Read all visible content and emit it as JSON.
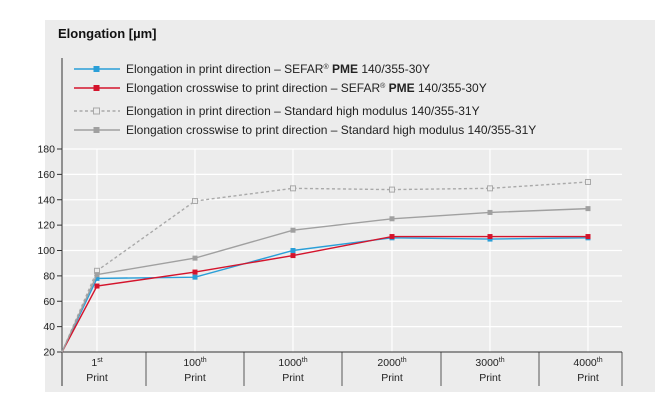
{
  "chart_data": {
    "type": "line",
    "title": "Elongation [µm]",
    "xlabel": "",
    "ylabel": "",
    "ylim": [
      20,
      180
    ],
    "yticks": [
      20,
      40,
      60,
      80,
      100,
      120,
      140,
      160,
      180
    ],
    "grid": true,
    "legend_position": "top-left",
    "categories": [
      {
        "num": "1",
        "sup": "st",
        "line2": "Print"
      },
      {
        "num": "100",
        "sup": "th",
        "line2": "Print"
      },
      {
        "num": "1000",
        "sup": "th",
        "line2": "Print"
      },
      {
        "num": "2000",
        "sup": "th",
        "line2": "Print"
      },
      {
        "num": "3000",
        "sup": "th",
        "line2": "Print"
      },
      {
        "num": "4000",
        "sup": "th",
        "line2": "Print"
      }
    ],
    "origin_value": 20,
    "series": [
      {
        "name": "Elongation in print direction – SEFAR® PME 140/355-30Y",
        "name_parts": [
          "Elongation in print direction – SEFAR",
          "®",
          " ",
          "PME",
          " 140/355-30Y"
        ],
        "color": "#2a9fd8",
        "style": "solid",
        "marker": "filled-square",
        "values": [
          78,
          79,
          100,
          110,
          109,
          110
        ]
      },
      {
        "name": "Elongation crosswise to print direction – SEFAR® PME 140/355-30Y",
        "name_parts": [
          "Elongation crosswise to print direction – SEFAR",
          "®",
          " ",
          "PME",
          " 140/355-30Y"
        ],
        "color": "#d4142c",
        "style": "solid",
        "marker": "filled-square",
        "values": [
          72,
          83,
          96,
          111,
          111,
          111
        ]
      },
      {
        "name": "Elongation in print direction – Standard high modulus 140/355-31Y",
        "color": "#a9a9a9",
        "style": "dashed",
        "marker": "hollow-square",
        "values": [
          84,
          139,
          149,
          148,
          149,
          154
        ]
      },
      {
        "name": "Elongation crosswise to print direction – Standard high modulus 140/355-31Y",
        "color": "#a0a0a0",
        "style": "solid",
        "marker": "filled-square",
        "values": [
          81,
          94,
          116,
          125,
          130,
          133
        ]
      }
    ]
  }
}
